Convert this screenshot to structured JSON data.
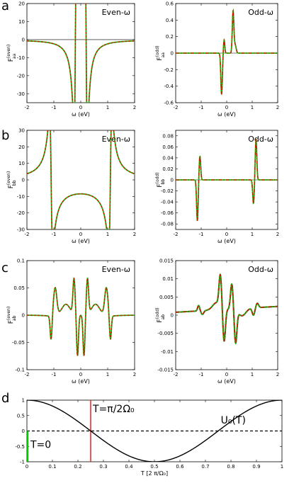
{
  "panel_letters": [
    "a",
    "b",
    "c",
    "d"
  ],
  "chart_data": [
    {
      "id": "a_even",
      "type": "line",
      "title": "Even-ω",
      "ylabel_main": "F",
      "ylabel_sup": "(even)",
      "ylabel_sub": "aa",
      "xlabel": "ω (eV)",
      "xlim": [
        -2,
        2
      ],
      "ylim": [
        -35,
        20
      ],
      "xticks": [
        -2,
        -1,
        0,
        1,
        2
      ],
      "xtick_labels": [
        "-2",
        "-1",
        "0",
        "1",
        "2"
      ],
      "yticks": [
        -30,
        -20,
        -10,
        0,
        10,
        20
      ],
      "ytick_labels": [
        "-30",
        "-20",
        "-10",
        "0",
        "10",
        "20"
      ],
      "zero_line": true,
      "curves": {
        "kind": "even",
        "E": [
          -0.2,
          0.2
        ],
        "g": 0.05,
        "A": -1.0,
        "scale": 20.0
      },
      "series": [
        {
          "color": "#00cc00",
          "style": "solid"
        },
        {
          "color": "#ee0000",
          "style": "dashed"
        }
      ]
    },
    {
      "id": "a_odd",
      "type": "line",
      "title": "Odd-ω",
      "ylabel_main": "F",
      "ylabel_sup": "(odd)",
      "ylabel_sub": "aa",
      "xlabel": "ω (eV)",
      "xlim": [
        -2,
        2
      ],
      "ylim": [
        -0.6,
        0.6
      ],
      "xticks": [
        -2,
        -1,
        0,
        1,
        2
      ],
      "xtick_labels": [
        "-2",
        "-1",
        "0",
        "1",
        "2"
      ],
      "yticks": [
        -0.6,
        -0.4,
        -0.2,
        0,
        0.2,
        0.4,
        0.6
      ],
      "ytick_labels": [
        "-0.6",
        "-0.4",
        "-0.2",
        "0",
        "0.2",
        "0.4",
        "0.6"
      ],
      "zero_line": true,
      "curves": {
        "kind": "odd",
        "peaks": [
          [
            -0.2,
            -0.5,
            0.03
          ],
          [
            -0.1,
            0.16,
            0.025
          ],
          [
            0.25,
            0.5,
            0.03
          ],
          [
            0.33,
            0.1,
            0.04
          ]
        ]
      },
      "series": [
        {
          "color": "#00cc00",
          "style": "solid"
        },
        {
          "color": "#ee0000",
          "style": "dashdot"
        }
      ]
    },
    {
      "id": "b_even",
      "type": "line",
      "title": "Even-ω",
      "ylabel_main": "F",
      "ylabel_sup": "(even)",
      "ylabel_sub": "bb",
      "xlabel": "ω (eV)",
      "xlim": [
        -2,
        2
      ],
      "ylim": [
        -30,
        30
      ],
      "xticks": [
        -2,
        -1,
        0,
        1,
        2
      ],
      "xtick_labels": [
        "-2",
        "-1",
        "0",
        "1",
        "2"
      ],
      "yticks": [
        -30,
        -20,
        -10,
        0,
        10,
        20,
        30
      ],
      "ytick_labels": [
        "-30",
        "-20",
        "-10",
        "0",
        "10",
        "20",
        "30"
      ],
      "zero_line": false,
      "curves": {
        "kind": "even",
        "E": [
          -1.1,
          1.1
        ],
        "g": 0.05,
        "A": 0.0,
        "scale": 20.0
      },
      "series": [
        {
          "color": "#00cc00",
          "style": "solid"
        },
        {
          "color": "#ee0000",
          "style": "dashed"
        }
      ]
    },
    {
      "id": "b_odd",
      "type": "line",
      "title": "Odd-ω",
      "ylabel_main": "F",
      "ylabel_sup": "(odd)",
      "ylabel_sub": "bb",
      "xlabel": "ω (eV)",
      "xlim": [
        -2,
        2
      ],
      "ylim": [
        -0.09,
        0.09
      ],
      "xticks": [
        -2,
        -1,
        0,
        1,
        2
      ],
      "xtick_labels": [
        "-2",
        "-1",
        "0",
        "1",
        "2"
      ],
      "yticks": [
        -0.08,
        -0.06,
        -0.04,
        -0.02,
        0,
        0.02,
        0.04,
        0.06,
        0.08
      ],
      "ytick_labels": [
        "-0.08",
        "-0.06",
        "-0.04",
        "-0.02",
        "0",
        "0.02",
        "0.04",
        "0.06",
        "0.08"
      ],
      "zero_line": true,
      "curves": {
        "kind": "odd",
        "peaks": [
          [
            -1.15,
            -0.074,
            0.03
          ],
          [
            -1.05,
            0.043,
            0.03
          ],
          [
            1.05,
            -0.043,
            0.03
          ],
          [
            1.15,
            0.074,
            0.03
          ]
        ]
      },
      "series": [
        {
          "color": "#00cc00",
          "style": "solid"
        },
        {
          "color": "#ee0000",
          "style": "dashdot"
        }
      ]
    },
    {
      "id": "c_even",
      "type": "line",
      "title": "Even-ω",
      "ylabel_main": "F",
      "ylabel_sup": "(even)",
      "ylabel_sub": "ab",
      "xlabel": "ω (eV)",
      "xlim": [
        -2,
        2
      ],
      "ylim": [
        -0.1,
        0.1
      ],
      "xticks": [
        -2,
        -1,
        0,
        1,
        2
      ],
      "xtick_labels": [
        "-2",
        "-1",
        "0",
        "1",
        "2"
      ],
      "yticks": [
        -0.1,
        -0.05,
        0,
        0.05,
        0.1
      ],
      "ytick_labels": [
        "-0.1",
        "-0.05",
        "0",
        "0.05",
        "0.1"
      ],
      "zero_line": false,
      "curves": {
        "kind": "ab",
        "base": "even"
      },
      "series": [
        {
          "color": "#00cc00",
          "style": "solid"
        },
        {
          "color": "#ee0000",
          "style": "dashed"
        }
      ]
    },
    {
      "id": "c_odd",
      "type": "line",
      "title": "Odd-ω",
      "ylabel_main": "F",
      "ylabel_sup": "(odd)",
      "ylabel_sub": "ab",
      "xlabel": "ω (eV)",
      "xlim": [
        -2,
        2
      ],
      "ylim": [
        -0.015,
        0.015
      ],
      "xticks": [
        -2,
        -1,
        0,
        1,
        2
      ],
      "xtick_labels": [
        "-2",
        "-1",
        "0",
        "1",
        "2"
      ],
      "yticks": [
        -0.015,
        -0.01,
        -0.005,
        0,
        0.005,
        0.01,
        0.015
      ],
      "ytick_labels": [
        "-0.015",
        "-0.01",
        "-0.005",
        "0",
        "0.005",
        "0.01",
        "0.015"
      ],
      "zero_line": false,
      "curves": {
        "kind": "ab",
        "base": "odd"
      },
      "series": [
        {
          "color": "#111111",
          "style": "solid"
        },
        {
          "color": "#00cc00",
          "style": "solid"
        },
        {
          "color": "#ee0000",
          "style": "dashdot"
        }
      ]
    },
    {
      "id": "d",
      "type": "line",
      "xlabel": "T [2 π/Ω₀]",
      "xlim": [
        0,
        1
      ],
      "ylim": [
        -1,
        1
      ],
      "xticks": [
        0,
        0.1,
        0.2,
        0.3,
        0.4,
        0.5,
        0.6,
        0.7,
        0.8,
        0.9,
        1
      ],
      "xtick_labels": [
        "0",
        "0.1",
        "0.2",
        "0.3",
        "0.4",
        "0.5",
        "0.6",
        "0.7",
        "0.8",
        "0.9",
        "1"
      ],
      "yticks": [
        -1,
        -0.5,
        0,
        0.5,
        1
      ],
      "ytick_labels": [
        "-1",
        "-0.5",
        "0",
        "0.5",
        "1"
      ],
      "series": [
        {
          "name": "U₀(T)",
          "function": "cos(2πT)",
          "color": "#000000",
          "style": "solid"
        }
      ],
      "zero_line_style": "dashed",
      "vlines": [
        {
          "x": 0.25,
          "color": "#e82020"
        },
        {
          "x": 0,
          "color": "#00cc00"
        }
      ],
      "annotations": {
        "vline_label": "T=π/2Ω₀",
        "series_label": "U₀(T)",
        "origin_label": "T=0"
      }
    }
  ]
}
